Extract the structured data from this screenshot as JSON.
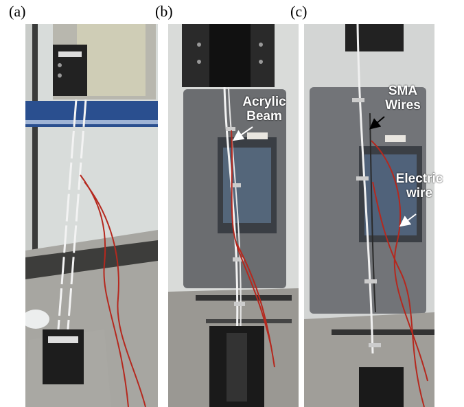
{
  "panels": [
    {
      "label": "(a)"
    },
    {
      "label": "(b)"
    },
    {
      "label": "(c)"
    }
  ],
  "annotations": {
    "acrylic_beam": [
      "Acrylic",
      "Beam"
    ],
    "sma_wires": [
      "SMA",
      "Wires"
    ],
    "electric_wire": [
      "Electric",
      "wire"
    ]
  },
  "colors": {
    "frame": "#000000",
    "wire_red": "#b5281e",
    "chamber": "#6b6d70",
    "steel": "#bfc0c0",
    "sign_blue": "#2a4f8f"
  }
}
